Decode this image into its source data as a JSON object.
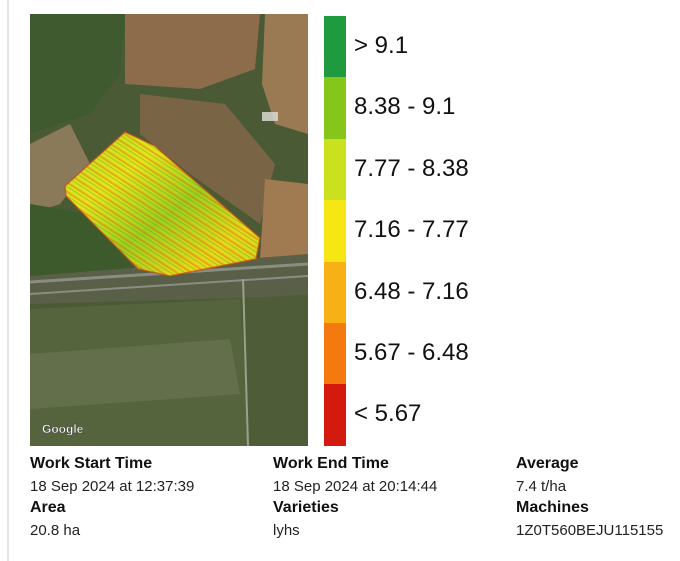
{
  "map": {
    "attribution": "Google"
  },
  "legend": [
    {
      "label": "> 9.1",
      "color": "#1f9a3e"
    },
    {
      "label": "8.38 - 9.1",
      "color": "#86c61a"
    },
    {
      "label": "7.77 - 8.38",
      "color": "#c9e11f"
    },
    {
      "label": "7.16 - 7.77",
      "color": "#f6e614"
    },
    {
      "label": "6.48 - 7.16",
      "color": "#f7b015"
    },
    {
      "label": "5.67 - 6.48",
      "color": "#f47a0f"
    },
    {
      "label": "< 5.67",
      "color": "#d4190e"
    }
  ],
  "details": [
    {
      "label": "Work Start Time",
      "value": "18 Sep 2024 at 12:37:39"
    },
    {
      "label": "Work End Time",
      "value": "18 Sep 2024 at 20:14:44"
    },
    {
      "label": "Average",
      "value": "7.4 t/ha"
    },
    {
      "label": "Area",
      "value": "20.8 ha"
    },
    {
      "label": "Varieties",
      "value": "lyhs"
    },
    {
      "label": "Machines",
      "value": "1Z0T560BEJU115155"
    }
  ]
}
